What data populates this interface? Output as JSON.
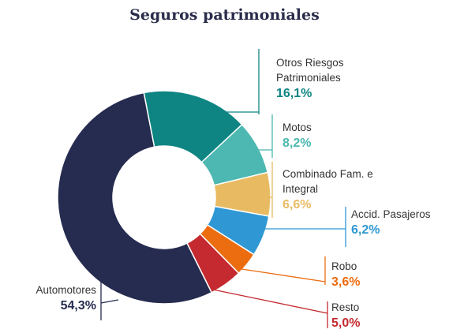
{
  "chart_data": {
    "type": "donut",
    "title": "Seguros patrimoniales",
    "categories": [
      "Otros Riesgos Patrimoniales",
      "Motos",
      "Combinado Fam. e Integral",
      "Accid. Pasajeros",
      "Robo",
      "Resto",
      "Automotores"
    ],
    "values": [
      16.1,
      8.2,
      6.6,
      6.2,
      3.6,
      5.0,
      54.3
    ],
    "value_labels": [
      "16,1%",
      "8,2%",
      "6,6%",
      "6,2%",
      "3,6%",
      "5,0%",
      "54,3%"
    ],
    "colors": [
      "#0e8583",
      "#4cb8b1",
      "#e8bb63",
      "#2f97d4",
      "#ec6c10",
      "#c42a2f",
      "#262c50"
    ]
  }
}
